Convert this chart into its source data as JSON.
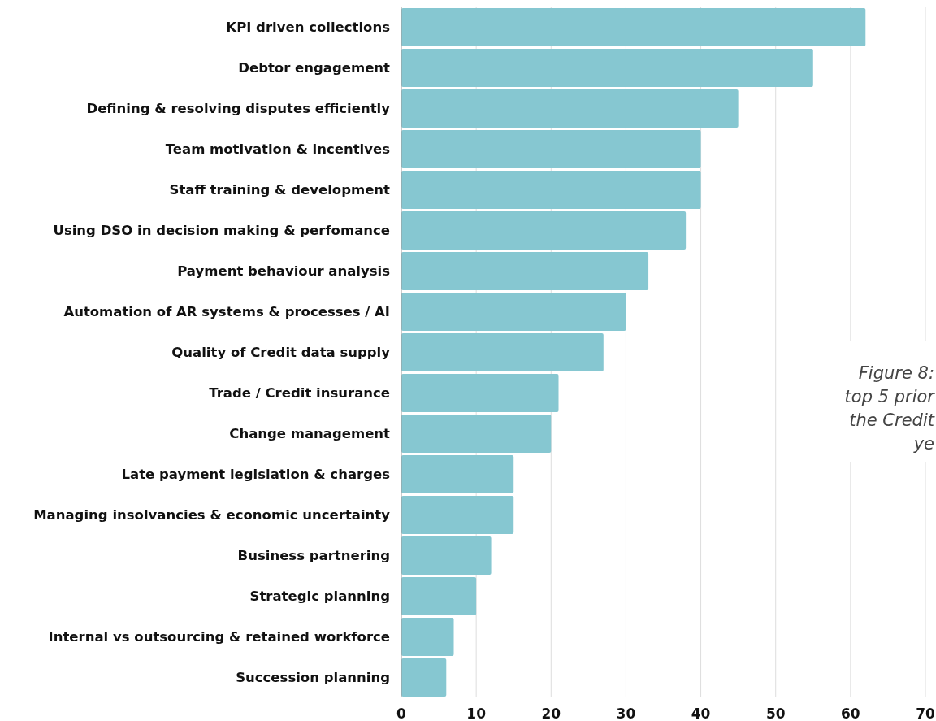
{
  "chart_data": {
    "type": "bar",
    "orientation": "horizontal",
    "categories": [
      "KPI driven collections",
      "Debtor engagement",
      "Defining & resolving disputes efficiently",
      "Team motivation & incentives",
      "Staff training & development",
      "Using DSO in decision making & perfomance",
      "Payment behaviour analysis",
      "Automation of AR systems & processes / AI",
      "Quality of Credit data supply",
      "Trade / Credit insurance",
      "Change management",
      "Late payment legislation & charges",
      "Managing insolvancies & economic uncertainty",
      "Business partnering",
      "Strategic planning",
      "Internal vs outsourcing & retained workforce",
      "Succession planning"
    ],
    "values": [
      62,
      55,
      45,
      40,
      40,
      38,
      33,
      30,
      27,
      21,
      20,
      15,
      15,
      12,
      10,
      7,
      6
    ],
    "color": "#86c7d1",
    "xlim": [
      0,
      70
    ],
    "xticks": [
      0,
      10,
      20,
      30,
      40,
      50,
      60,
      70
    ],
    "grid": "x",
    "annotations": [
      "Figure 8:\ntop 5 prior\nthe Credit\nye"
    ]
  }
}
